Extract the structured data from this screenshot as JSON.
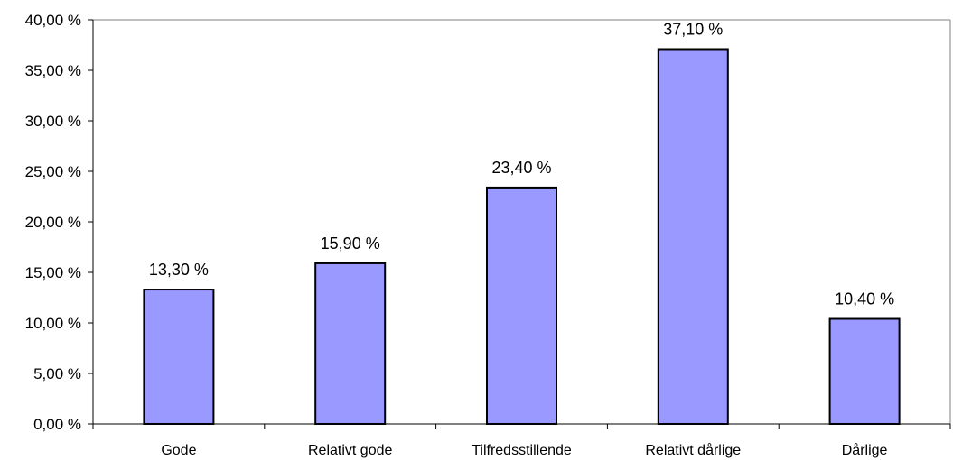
{
  "chart_data": {
    "type": "bar",
    "categories": [
      "Gode",
      "Relativt gode",
      "Tilfredsstillende",
      "Relativt dårlige",
      "Dårlige"
    ],
    "values": [
      13.3,
      15.9,
      23.4,
      37.1,
      10.4
    ],
    "data_labels": [
      "13,30 %",
      "15,90 %",
      "23,40 %",
      "37,10 %",
      "10,40 %"
    ],
    "yticks": [
      0,
      5,
      10,
      15,
      20,
      25,
      30,
      35,
      40
    ],
    "ytick_labels": [
      "0,00 %",
      "5,00 %",
      "10,00 %",
      "15,00 %",
      "20,00 %",
      "25,00 %",
      "30,00 %",
      "35,00 %",
      "40,00 %"
    ],
    "ylim": [
      0,
      40
    ],
    "grid": false,
    "legend": "none",
    "colors": {
      "bar_fill": "#9999ff",
      "bar_stroke": "#000000",
      "axis": "#000000",
      "plot_border": "#808080"
    }
  }
}
